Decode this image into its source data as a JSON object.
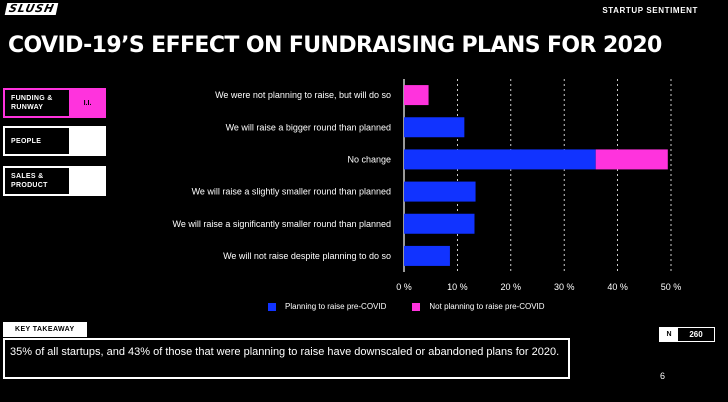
{
  "header": {
    "logo": "SLUSH",
    "section": "STARTUP SENTIMENT",
    "title": "COVID-19’S EFFECT ON FUNDRAISING PLANS FOR 2020"
  },
  "nav": [
    {
      "label_line1": "FUNDING &",
      "label_line2": "RUNWAY",
      "count": "I.I.",
      "active": true
    },
    {
      "label_line1": "PEOPLE",
      "label_line2": "",
      "count": "",
      "active": false
    },
    {
      "label_line1": "SALES &",
      "label_line2": "PRODUCT",
      "count": "",
      "active": false
    }
  ],
  "colors": {
    "planning": "#1133ff",
    "not_planning": "#ff33dd",
    "background": "#000000"
  },
  "chart_data": {
    "type": "bar",
    "orientation": "horizontal",
    "stacked": true,
    "categories": [
      "We were not planning to raise, but will do so",
      "We will raise a bigger round than planned",
      "No change",
      "We will raise a slightly smaller round than planned",
      "We will raise a significantly smaller round than planned",
      "We will not raise despite planning to do so"
    ],
    "series": [
      {
        "name": "Planning to raise pre-COVID",
        "values": [
          0,
          11.3,
          35.9,
          13.4,
          13.2,
          8.6
        ]
      },
      {
        "name": "Not planning to raise pre-COVID",
        "values": [
          4.6,
          0,
          13.5,
          0,
          0,
          0
        ]
      }
    ],
    "xlim": [
      0,
      50
    ],
    "xticks": [
      0,
      10,
      20,
      30,
      40,
      50
    ],
    "tick_labels": [
      "0 %",
      "10 %",
      "20 %",
      "30 %",
      "40 %",
      "50 %"
    ],
    "grid": "vertical dashed",
    "legend": "bottom"
  },
  "takeaway": {
    "tag": "KEY TAKEAWAY",
    "text": "35% of all startups, and 43% of those that were planning to raise have downscaled or abandoned plans for 2020."
  },
  "sample": {
    "label": "N",
    "value": "260"
  },
  "page_number": "6"
}
